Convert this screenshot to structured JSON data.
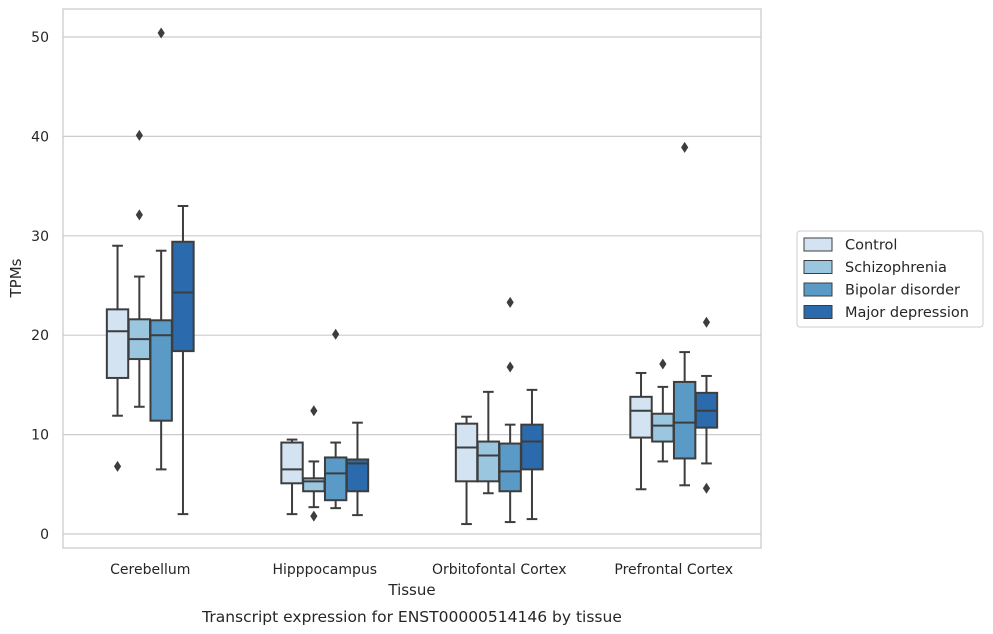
{
  "chart_data": {
    "type": "box",
    "title": "",
    "caption": "Transcript expression for ENST00000514146 by tissue",
    "xlabel": "Tissue",
    "ylabel": "TPMs",
    "ylim": [
      -1.5,
      53
    ],
    "yticks": [
      0,
      10,
      20,
      30,
      40,
      50
    ],
    "grid": "horizontal",
    "legend_position": "right",
    "categories": [
      "Cerebellum",
      "Hipppocampus",
      "Orbitofontal Cortex",
      "Prefrontal Cortex"
    ],
    "series": [
      {
        "name": "Control",
        "color": "#d3e3f2",
        "boxes": [
          {
            "whislo": 11.9,
            "q1": 15.7,
            "med": 20.4,
            "q3": 22.6,
            "whishi": 29.0,
            "fliers": [
              6.8
            ]
          },
          {
            "whislo": 2.0,
            "q1": 5.1,
            "med": 6.5,
            "q3": 9.2,
            "whishi": 9.5,
            "fliers": []
          },
          {
            "whislo": 1.0,
            "q1": 5.3,
            "med": 8.7,
            "q3": 11.1,
            "whishi": 11.8,
            "fliers": []
          },
          {
            "whislo": 4.5,
            "q1": 9.7,
            "med": 12.4,
            "q3": 13.8,
            "whishi": 16.2,
            "fliers": []
          }
        ]
      },
      {
        "name": "Schizophrenia",
        "color": "#9ac6df",
        "boxes": [
          {
            "whislo": 12.8,
            "q1": 17.6,
            "med": 19.6,
            "q3": 21.6,
            "whishi": 25.9,
            "fliers": [
              32.1,
              40.1
            ]
          },
          {
            "whislo": 2.7,
            "q1": 4.3,
            "med": 5.3,
            "q3": 5.6,
            "whishi": 7.3,
            "fliers": [
              12.4,
              1.8
            ]
          },
          {
            "whislo": 4.1,
            "q1": 5.3,
            "med": 7.9,
            "q3": 9.3,
            "whishi": 14.3,
            "fliers": []
          },
          {
            "whislo": 7.3,
            "q1": 9.3,
            "med": 10.9,
            "q3": 12.1,
            "whishi": 14.8,
            "fliers": [
              17.1
            ]
          }
        ]
      },
      {
        "name": "Bipolar disorder",
        "color": "#5a9ac6",
        "boxes": [
          {
            "whislo": 6.5,
            "q1": 11.4,
            "med": 20.0,
            "q3": 21.5,
            "whishi": 28.5,
            "fliers": [
              50.4
            ]
          },
          {
            "whislo": 2.6,
            "q1": 3.4,
            "med": 6.1,
            "q3": 7.7,
            "whishi": 9.2,
            "fliers": [
              20.1
            ]
          },
          {
            "whislo": 1.2,
            "q1": 4.3,
            "med": 6.3,
            "q3": 9.1,
            "whishi": 11.0,
            "fliers": [
              23.3,
              16.8
            ]
          },
          {
            "whislo": 4.9,
            "q1": 7.6,
            "med": 11.2,
            "q3": 15.3,
            "whishi": 18.3,
            "fliers": [
              38.9
            ]
          }
        ]
      },
      {
        "name": "Major depression",
        "color": "#2a6aad",
        "boxes": [
          {
            "whislo": 2.0,
            "q1": 18.4,
            "med": 24.3,
            "q3": 29.4,
            "whishi": 33.0,
            "fliers": []
          },
          {
            "whislo": 1.9,
            "q1": 4.3,
            "med": 7.1,
            "q3": 7.5,
            "whishi": 11.2,
            "fliers": []
          },
          {
            "whislo": 1.5,
            "q1": 6.5,
            "med": 9.3,
            "q3": 11.0,
            "whishi": 14.5,
            "fliers": []
          },
          {
            "whislo": 7.1,
            "q1": 10.7,
            "med": 12.4,
            "q3": 14.2,
            "whishi": 15.9,
            "fliers": [
              4.6,
              21.3
            ]
          }
        ]
      }
    ]
  }
}
